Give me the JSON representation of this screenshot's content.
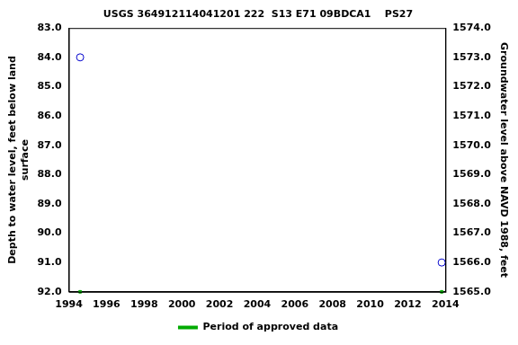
{
  "chart_data": {
    "type": "scatter",
    "title": "USGS 364912114041201 222  S13 E71 09BDCA1    PS27",
    "y_label": [
      "Depth to water level, feet below land",
      "surface"
    ],
    "y2_label": "Groundwater level above NAVD 1988, feet",
    "xlim": [
      1994,
      2014
    ],
    "xticks": [
      1994,
      1996,
      1998,
      2000,
      2002,
      2004,
      2006,
      2008,
      2010,
      2012,
      2014
    ],
    "ylim": [
      83,
      92
    ],
    "yticks": [
      {
        "value": 83,
        "label": "83.0"
      },
      {
        "value": 84,
        "label": "84.0"
      },
      {
        "value": 85,
        "label": "85.0"
      },
      {
        "value": 86,
        "label": "86.0"
      },
      {
        "value": 87,
        "label": "87.0"
      },
      {
        "value": 88,
        "label": "88.0"
      },
      {
        "value": 89,
        "label": "89.0"
      },
      {
        "value": 90,
        "label": "90.0"
      },
      {
        "value": 91,
        "label": "91.0"
      },
      {
        "value": 92,
        "label": "92.0"
      }
    ],
    "y2lim": [
      1565,
      1574
    ],
    "y2ticks": [
      {
        "value": 1565,
        "label": "1565.0"
      },
      {
        "value": 1566,
        "label": "1566.0"
      },
      {
        "value": 1567,
        "label": "1567.0"
      },
      {
        "value": 1568,
        "label": "1568.0"
      },
      {
        "value": 1569,
        "label": "1569.0"
      },
      {
        "value": 1570,
        "label": "1570.0"
      },
      {
        "value": 1571,
        "label": "1571.0"
      },
      {
        "value": 1572,
        "label": "1572.0"
      },
      {
        "value": 1573,
        "label": "1573.0"
      },
      {
        "value": 1574,
        "label": "1574.0"
      }
    ],
    "grid": false,
    "legend": "bottom",
    "series": [
      {
        "x": [
          1994.6,
          2013.8
        ],
        "values": [
          84.0,
          91.0
        ],
        "color": "#0000cc",
        "marker": "circle"
      },
      {
        "name": "Period of approved data",
        "x": [
          1994.6,
          2013.8
        ],
        "values": [
          92,
          92
        ],
        "color": "#00aa00",
        "marker": "square"
      }
    ]
  }
}
